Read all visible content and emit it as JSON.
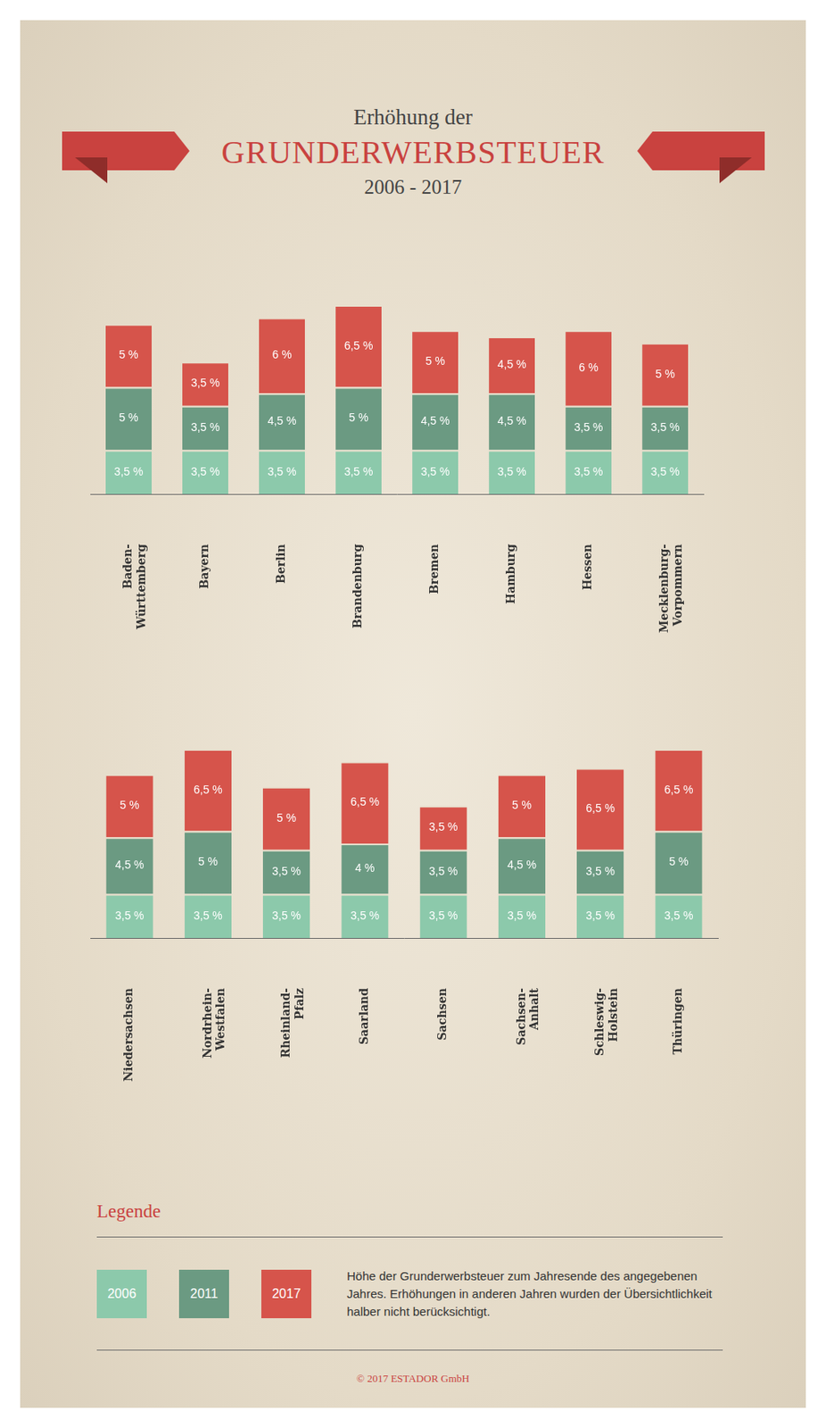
{
  "pretitle": "Erhöhung der",
  "title": "GRUNDERWERBSTEUER",
  "subtitle": "2006 - 2017",
  "legend": "bottom",
  "legend_title": "Legende",
  "annotations": [
    "Höhe der Grunderwerbsteuer zum Jahresende des angegebenen Jahres. Erhöhungen in anderen Jahren wurden der Übersichtlichkeit halber nicht berücksichtigt."
  ],
  "footer": "© 2017 ESTADOR GmbH",
  "chart_data": [
    {
      "type": "bar",
      "stacked": true,
      "data_labels": true,
      "tick_labels": "x",
      "grid": false,
      "categories": [
        "Baden-Württemberg",
        "Bayern",
        "Berlin",
        "Brandenburg",
        "Bremen",
        "Hamburg",
        "Hessen",
        "Mecklenburg-Vorpommern"
      ],
      "series": [
        {
          "name": "2006",
          "color": "#8cc9ab",
          "values": [
            3.5,
            3.5,
            3.5,
            3.5,
            3.5,
            3.5,
            3.5,
            3.5
          ],
          "value_labels": [
            "3,5 %",
            "3,5 %",
            "3,5 %",
            "3,5 %",
            "3,5 %",
            "3,5 %",
            "3,5 %",
            "3,5 %"
          ]
        },
        {
          "name": "2011",
          "color": "#6b9a82",
          "values": [
            5,
            3.5,
            4.5,
            5,
            4.5,
            4.5,
            3.5,
            3.5
          ],
          "value_labels": [
            "5 %",
            "3,5 %",
            "4,5 %",
            "5 %",
            "4,5 %",
            "4,5 %",
            "3,5 %",
            "3,5 %"
          ]
        },
        {
          "name": "2017",
          "color": "#d6544b",
          "values": [
            5,
            3.5,
            6,
            6.5,
            5,
            4.5,
            6,
            5
          ],
          "value_labels": [
            "5 %",
            "3,5 %",
            "6 %",
            "6,5 %",
            "5 %",
            "4,5 %",
            "6 %",
            "5 %"
          ]
        }
      ]
    },
    {
      "type": "bar",
      "stacked": true,
      "data_labels": true,
      "tick_labels": "x",
      "grid": false,
      "categories": [
        "Niedersachsen",
        "Nordrhein-Westfalen",
        "Rheinland-Pfalz",
        "Saarland",
        "Sachsen",
        "Sachsen-Anhalt",
        "Schleswig-Holstein",
        "Thüringen"
      ],
      "series": [
        {
          "name": "2006",
          "color": "#8cc9ab",
          "values": [
            3.5,
            3.5,
            3.5,
            3.5,
            3.5,
            3.5,
            3.5,
            3.5
          ],
          "value_labels": [
            "3,5 %",
            "3,5 %",
            "3,5 %",
            "3,5 %",
            "3,5 %",
            "3,5 %",
            "3,5 %",
            "3,5 %"
          ]
        },
        {
          "name": "2011",
          "color": "#6b9a82",
          "values": [
            4.5,
            5,
            3.5,
            4,
            3.5,
            4.5,
            3.5,
            5
          ],
          "value_labels": [
            "4,5 %",
            "5 %",
            "3,5 %",
            "4 %",
            "3,5 %",
            "4,5 %",
            "3,5 %",
            "5 %"
          ]
        },
        {
          "name": "2017",
          "color": "#d6544b",
          "values": [
            5,
            6.5,
            5,
            6.5,
            3.5,
            5,
            6.5,
            6.5
          ],
          "value_labels": [
            "5 %",
            "6,5 %",
            "5 %",
            "6,5 %",
            "3,5 %",
            "5 %",
            "6,5 %",
            "6,5 %"
          ]
        }
      ]
    }
  ]
}
